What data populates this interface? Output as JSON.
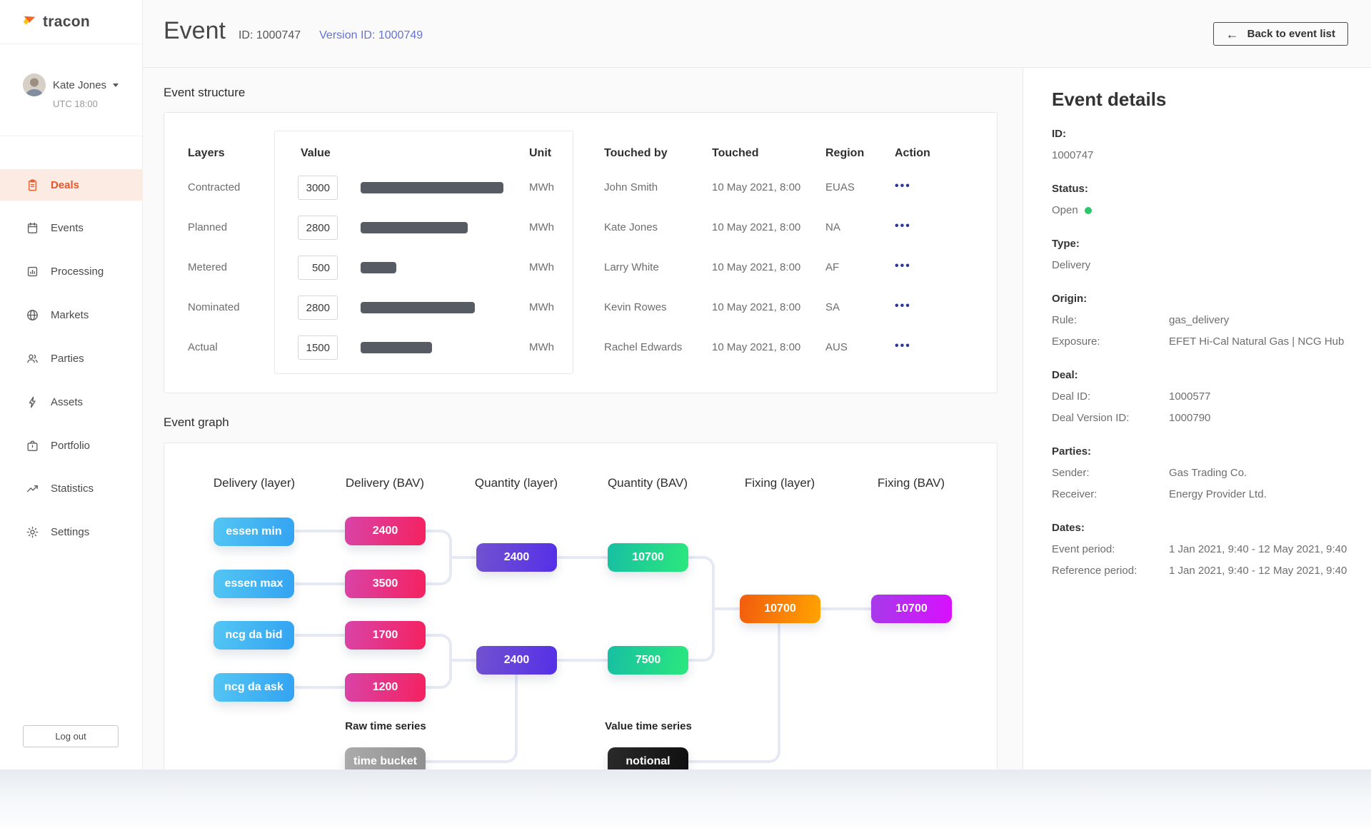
{
  "colors": {
    "accent": "#EB5528",
    "accent-bg": "#FBEBE3",
    "link": "#6373D6",
    "connector": "#E4E9F4",
    "bar": "#575B64",
    "dots": "#2B3990",
    "green-dot": "#2BC76D",
    "node-blue-a": "#53C6F3",
    "node-blue-b": "#33A3F2",
    "node-pink-a": "#D844A8",
    "node-pink-b": "#F5215F",
    "node-purple-a": "#7252CF",
    "node-purple-b": "#5430E8",
    "node-green-a": "#17BFA3",
    "node-green-b": "#2BE87D",
    "node-orange-a": "#F25B0E",
    "node-orange-b": "#FFA400",
    "node-magenta-a": "#A53BE8",
    "node-magenta-b": "#D90FFF",
    "node-gray-a": "#ABABAB",
    "node-gray-b": "#8F8F8F",
    "node-black-a": "#2A2A2A",
    "node-black-b": "#0F0F0F"
  },
  "sidebar": {
    "logo_text": "tracon",
    "user": {
      "name": "Kate Jones",
      "timezone": "UTC 18:00"
    },
    "items": [
      {
        "label": "Deals",
        "icon": "clipboard-icon",
        "active": true
      },
      {
        "label": "Events",
        "icon": "calendar-icon",
        "active": false
      },
      {
        "label": "Processing",
        "icon": "bar-chart-icon",
        "active": false
      },
      {
        "label": "Markets",
        "icon": "globe-icon",
        "active": false
      },
      {
        "label": "Parties",
        "icon": "users-icon",
        "active": false
      },
      {
        "label": "Assets",
        "icon": "lightning-icon",
        "active": false
      },
      {
        "label": "Portfolio",
        "icon": "briefcase-icon",
        "active": false
      },
      {
        "label": "Statistics",
        "icon": "trending-up-icon",
        "active": false
      },
      {
        "label": "Settings",
        "icon": "gear-icon",
        "active": false
      }
    ],
    "logout_label": "Log out"
  },
  "header": {
    "title": "Event",
    "id_text": "ID: 1000747",
    "version_text": "Version ID: 1000749",
    "back_label": "Back to event list",
    "back_arrow": "←"
  },
  "event_structure": {
    "heading": "Event structure",
    "columns": {
      "layers": "Layers",
      "value": "Value",
      "unit": "Unit",
      "touched_by": "Touched by",
      "touched": "Touched",
      "region": "Region",
      "action": "Action"
    },
    "action_dots": "•••",
    "rows": [
      {
        "layer": "Contracted",
        "value": "3000",
        "bar_pct": 100,
        "unit": "MWh",
        "touched_by": "John Smith",
        "touched": "10 May 2021, 8:00",
        "region": "EUAS"
      },
      {
        "layer": "Planned",
        "value": "2800",
        "bar_pct": 75,
        "unit": "MWh",
        "touched_by": "Kate Jones",
        "touched": "10 May 2021, 8:00",
        "region": "NA"
      },
      {
        "layer": "Metered",
        "value": "500",
        "bar_pct": 25,
        "unit": "MWh",
        "touched_by": "Larry White",
        "touched": "10 May 2021, 8:00",
        "region": "AF"
      },
      {
        "layer": "Nominated",
        "value": "2800",
        "bar_pct": 80,
        "unit": "MWh",
        "touched_by": "Kevin Rowes",
        "touched": "10 May 2021, 8:00",
        "region": "SA"
      },
      {
        "layer": "Actual",
        "value": "1500",
        "bar_pct": 50,
        "unit": "MWh",
        "touched_by": "Rachel Edwards",
        "touched": "10 May 2021, 8:00",
        "region": "AUS"
      }
    ]
  },
  "event_graph": {
    "heading": "Event graph",
    "columns": [
      "Delivery (layer)",
      "Delivery (BAV)",
      "Quantity (layer)",
      "Quantity (BAV)",
      "Fixing (layer)",
      "Fixing (BAV)"
    ],
    "delivery_layer": [
      "essen min",
      "essen max",
      "ncg da bid",
      "ncg da ask"
    ],
    "delivery_bav": [
      "2400",
      "3500",
      "1700",
      "1200"
    ],
    "quantity_layer": [
      "2400",
      "2400"
    ],
    "quantity_bav": [
      "10700",
      "7500"
    ],
    "fixing_layer": [
      "10700"
    ],
    "fixing_bav": [
      "10700"
    ],
    "raw_time_series": {
      "label": "Raw time series",
      "node": "time bucket"
    },
    "value_time_series": {
      "label": "Value time series",
      "node": "notional"
    }
  },
  "event_details": {
    "title": "Event details",
    "id": {
      "label": "ID:",
      "value": "1000747"
    },
    "status": {
      "label": "Status:",
      "value": "Open"
    },
    "type": {
      "label": "Type:",
      "value": "Delivery"
    },
    "origin": {
      "label": "Origin:",
      "rows": [
        {
          "k": "Rule:",
          "v": "gas_delivery"
        },
        {
          "k": "Exposure:",
          "v": "EFET Hi-Cal Natural Gas | NCG Hub"
        }
      ]
    },
    "deal": {
      "label": "Deal:",
      "rows": [
        {
          "k": "Deal ID:",
          "v": "1000577"
        },
        {
          "k": "Deal Version ID:",
          "v": "1000790"
        }
      ]
    },
    "parties": {
      "label": "Parties:",
      "rows": [
        {
          "k": "Sender:",
          "v": "Gas Trading Co."
        },
        {
          "k": "Receiver:",
          "v": "Energy Provider Ltd."
        }
      ]
    },
    "dates": {
      "label": "Dates:",
      "rows": [
        {
          "k": "Event period:",
          "v": "1 Jan 2021, 9:40 - 12 May 2021, 9:40"
        },
        {
          "k": "Reference period:",
          "v": "1 Jan 2021, 9:40 - 12 May 2021, 9:40"
        }
      ]
    }
  }
}
